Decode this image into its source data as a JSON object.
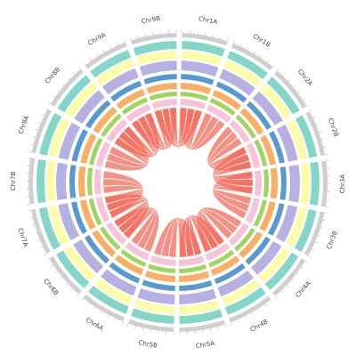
{
  "chart_data": {
    "type": "circos",
    "chromosomes": [
      "Chr1A",
      "Chr1B",
      "Chr2A",
      "Chr2B",
      "Chr3A",
      "Chr3B",
      "Chr4A",
      "Chr4B",
      "Chr5A",
      "Chr5B",
      "Chr6A",
      "Chr6B",
      "Chr7A",
      "Chr7B",
      "Chr8A",
      "Chr8B",
      "Chr9A",
      "Chr9B"
    ],
    "ideogram_color": "#cfcfcf",
    "tracks": [
      {
        "color": "#6fcfbf"
      },
      {
        "color": "#fbfb9a"
      },
      {
        "color": "#a9a3dc"
      },
      {
        "color": "#4f94cc"
      },
      {
        "color": "#f7a04a"
      },
      {
        "color": "#9bd35a"
      },
      {
        "color": "#f4b8d4"
      }
    ],
    "link_color": "#f26b5b",
    "links": [
      [
        "Chr1A",
        "Chr1B"
      ],
      [
        "Chr2A",
        "Chr2B"
      ],
      [
        "Chr3A",
        "Chr3B"
      ],
      [
        "Chr4A",
        "Chr4B"
      ],
      [
        "Chr5A",
        "Chr5B"
      ],
      [
        "Chr6A",
        "Chr6B"
      ],
      [
        "Chr7A",
        "Chr7B"
      ],
      [
        "Chr8A",
        "Chr8B"
      ],
      [
        "Chr9A",
        "Chr9B"
      ],
      [
        "Chr1A",
        "Chr9B"
      ],
      [
        "Chr3A",
        "Chr2B"
      ],
      [
        "Chr5A",
        "Chr4B"
      ],
      [
        "Chr7A",
        "Chr6B"
      ],
      [
        "Chr9A",
        "Chr8B"
      ]
    ]
  }
}
